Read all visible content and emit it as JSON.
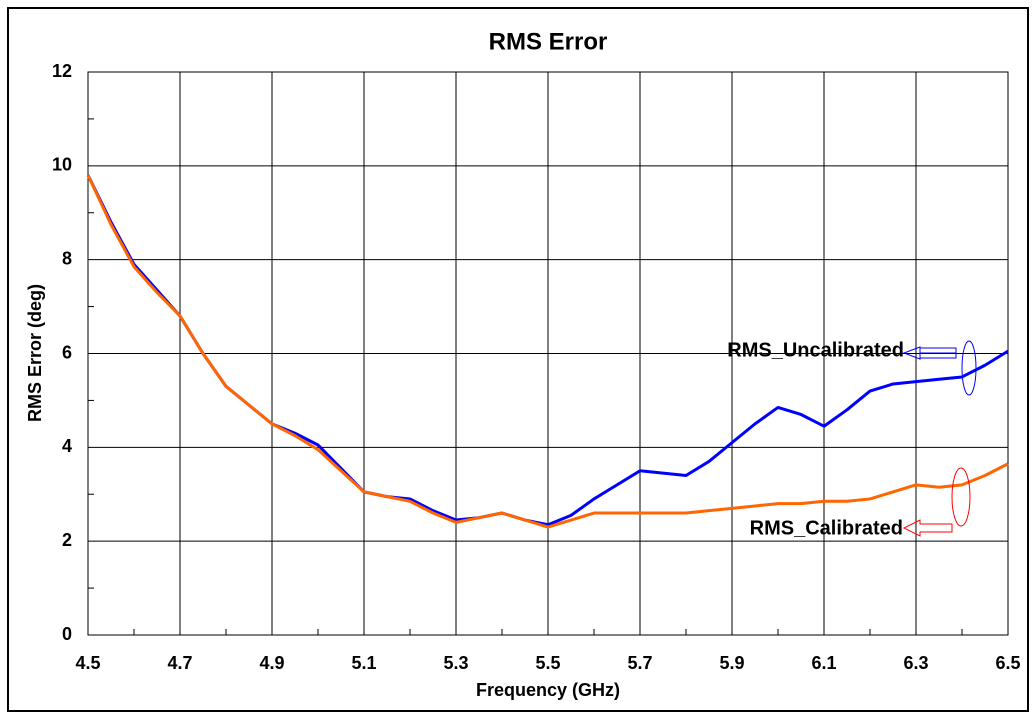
{
  "chart_data": {
    "type": "line",
    "title": "RMS Error",
    "x_label": "Frequency (GHz)",
    "y_label": "RMS Error (deg)",
    "x": [
      4.5,
      4.55,
      4.6,
      4.65,
      4.7,
      4.75,
      4.8,
      4.85,
      4.9,
      4.95,
      5.0,
      5.05,
      5.1,
      5.15,
      5.2,
      5.25,
      5.3,
      5.35,
      5.4,
      5.45,
      5.5,
      5.55,
      5.6,
      5.65,
      5.7,
      5.75,
      5.8,
      5.85,
      5.9,
      5.95,
      6.0,
      6.05,
      6.1,
      6.15,
      6.2,
      6.25,
      6.3,
      6.35,
      6.4,
      6.45,
      6.5
    ],
    "series": [
      {
        "name": "RMS_Uncalibrated",
        "color": "#0000ff",
        "values": [
          9.8,
          8.8,
          7.9,
          7.35,
          6.8,
          6.0,
          5.3,
          4.9,
          4.5,
          4.3,
          4.05,
          3.55,
          3.05,
          2.95,
          2.9,
          2.65,
          2.45,
          2.5,
          2.6,
          2.45,
          2.35,
          2.55,
          2.9,
          3.2,
          3.5,
          3.45,
          3.4,
          3.7,
          4.1,
          4.5,
          4.85,
          4.7,
          4.45,
          4.8,
          5.2,
          5.35,
          5.4,
          5.45,
          5.5,
          5.75,
          6.05
        ]
      },
      {
        "name": "RMS_Calibrated",
        "color": "#ff6600",
        "values": [
          9.8,
          8.75,
          7.85,
          7.3,
          6.8,
          6.0,
          5.3,
          4.9,
          4.5,
          4.25,
          3.95,
          3.5,
          3.05,
          2.95,
          2.85,
          2.6,
          2.4,
          2.5,
          2.6,
          2.45,
          2.3,
          2.45,
          2.6,
          2.6,
          2.6,
          2.6,
          2.6,
          2.65,
          2.7,
          2.75,
          2.8,
          2.8,
          2.85,
          2.85,
          2.9,
          3.05,
          3.2,
          3.15,
          3.2,
          3.4,
          3.65
        ]
      }
    ],
    "annotation_colors": [
      "#1a1acc",
      "#ff0000"
    ],
    "xlim": [
      4.5,
      6.5
    ],
    "ylim": [
      0,
      12
    ],
    "xticks": [
      4.5,
      4.7,
      4.9,
      5.1,
      5.3,
      5.5,
      5.7,
      5.9,
      6.1,
      6.3,
      6.5
    ],
    "yticks": [
      0,
      2,
      4,
      6,
      8,
      10,
      12
    ],
    "grid": true
  }
}
